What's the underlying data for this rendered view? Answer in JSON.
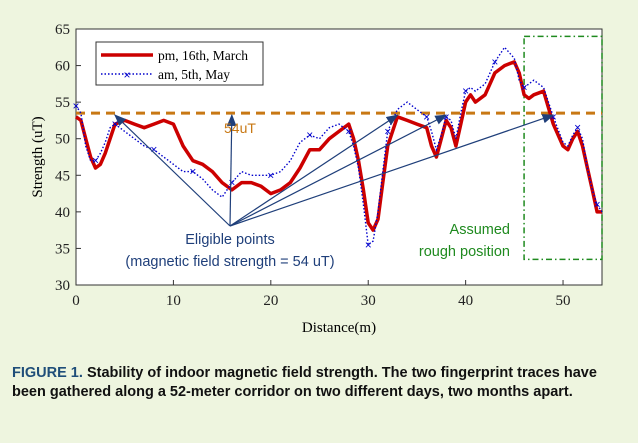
{
  "caption": {
    "label": "FIGURE 1.",
    "text": "Stability of indoor magnetic field strength. The two fingerprint traces have been gathered along a 52-meter corridor on two different days, two months apart."
  },
  "colors": {
    "background": "#eef5df",
    "pm_series": "#cc0000",
    "am_series": "#0000cc",
    "threshold": "#c87814",
    "annotation": "#1f3f7a",
    "assumed_box": "#1f8a1f"
  },
  "chart_data": {
    "type": "line",
    "xlabel": "Distance(m)",
    "ylabel": "Strength (uT)",
    "xlim": [
      0,
      54
    ],
    "ylim": [
      30,
      65
    ],
    "xticks": [
      0,
      10,
      20,
      30,
      40,
      50
    ],
    "yticks": [
      30,
      35,
      40,
      45,
      50,
      55,
      60,
      65
    ],
    "legend_position": "top-left",
    "series": [
      {
        "name": "pm, 16th, March",
        "style": "solid-thick",
        "x": [
          0,
          0.5,
          1,
          1.5,
          2,
          2.5,
          3,
          3.5,
          4,
          5,
          6,
          7,
          8,
          9,
          10,
          11,
          12,
          13,
          14,
          15,
          16,
          17,
          18,
          19,
          20,
          21,
          22,
          23,
          24,
          25,
          26,
          27,
          28,
          28.5,
          29,
          29.5,
          30,
          30.5,
          31,
          31.5,
          32,
          33,
          34,
          35,
          36,
          36.5,
          37,
          37.5,
          38,
          38.5,
          39,
          39.5,
          40,
          40.5,
          41,
          42,
          43,
          44,
          45,
          45.5,
          46,
          46.5,
          47,
          48,
          49,
          50,
          50.5,
          51,
          51.5,
          52,
          52.5,
          53,
          53.5,
          54
        ],
        "values": [
          53,
          52.5,
          50,
          47.5,
          46,
          46.5,
          48,
          50,
          52,
          52.5,
          52,
          51.5,
          52,
          52.5,
          52,
          49,
          47,
          46.5,
          45.5,
          44,
          43,
          44,
          44,
          43.5,
          42.5,
          43,
          44,
          46,
          48.5,
          48.5,
          50,
          51,
          52,
          50,
          47,
          43,
          38.5,
          37.5,
          39,
          44,
          49,
          53,
          52.5,
          52,
          51.5,
          49,
          47.5,
          50,
          52.5,
          51.5,
          49,
          52,
          55,
          56,
          55,
          56,
          59,
          60,
          60.5,
          59,
          56,
          55.5,
          56,
          56.5,
          52,
          49,
          48.5,
          50,
          51,
          49,
          46,
          43,
          40,
          40
        ]
      },
      {
        "name": "am, 5th, May",
        "style": "dotted-cross",
        "x": [
          0,
          0.5,
          1,
          1.5,
          2,
          2.5,
          3,
          3.5,
          4,
          5,
          6,
          7,
          8,
          9,
          10,
          11,
          12,
          13,
          14,
          15,
          16,
          17,
          18,
          19,
          20,
          21,
          22,
          23,
          24,
          25,
          26,
          27,
          28,
          28.5,
          29,
          29.5,
          30,
          30.5,
          31,
          31.5,
          32,
          33,
          34,
          35,
          36,
          36.5,
          37,
          37.5,
          38,
          38.5,
          39,
          39.5,
          40,
          40.5,
          41,
          42,
          43,
          44,
          45,
          45.5,
          46,
          46.5,
          47,
          48,
          49,
          50,
          50.5,
          51,
          51.5,
          52,
          52.5,
          53,
          53.5,
          54
        ],
        "values": [
          54.5,
          53.5,
          49,
          47,
          47,
          48,
          49.5,
          51.5,
          52,
          51,
          50,
          49,
          48.5,
          47.5,
          46.5,
          45.5,
          45.5,
          44.5,
          43,
          42,
          44,
          45.5,
          45,
          45,
          45,
          45.5,
          47,
          49.5,
          50.5,
          50,
          51.5,
          52,
          51,
          49,
          46,
          41,
          35.5,
          36,
          40,
          45.5,
          51,
          54,
          55,
          54,
          53,
          51,
          48.5,
          50.5,
          53,
          52.5,
          50,
          53.5,
          56.5,
          57,
          56.5,
          57.5,
          60.5,
          62.5,
          61,
          58,
          57,
          57.5,
          58,
          57,
          53,
          49.5,
          49,
          50.5,
          51.5,
          50,
          46,
          43,
          41,
          40
        ]
      }
    ],
    "reference_line": {
      "y": 53.5,
      "label": "54uT"
    },
    "annotations": [
      {
        "text_lines": [
          "Eligible points",
          "(magnetic field strength = 54 uT)"
        ]
      },
      {
        "text_lines": [
          "Assumed",
          "rough position"
        ]
      }
    ],
    "eligible_points_x": [
      4,
      16,
      33,
      38,
      49
    ],
    "assumed_region": {
      "x": [
        46,
        54
      ],
      "y": [
        33.5,
        64
      ]
    }
  }
}
